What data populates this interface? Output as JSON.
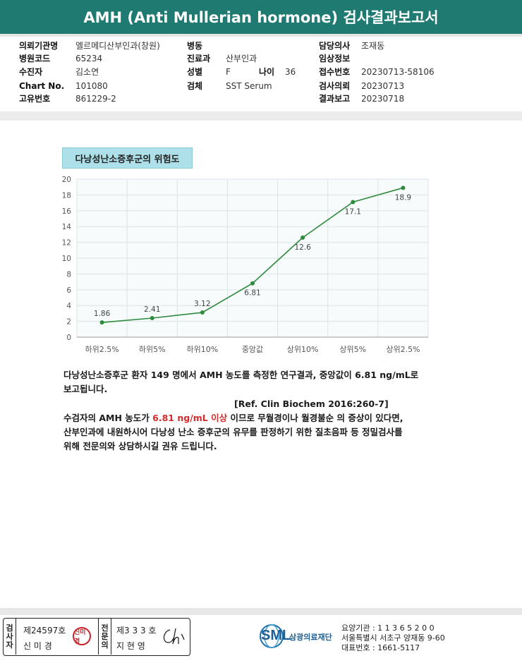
{
  "header": {
    "title": "AMH (Anti Mullerian hormone) 검사결과보고서"
  },
  "info": {
    "col1": [
      {
        "label": "의뢰기관명",
        "value": "엘르메디산부인과(창원)"
      },
      {
        "label": "병원코드",
        "value": "65234"
      },
      {
        "label": "수진자",
        "value": "김소연"
      },
      {
        "label": "Chart No.",
        "value": "101080"
      },
      {
        "label": "고유번호",
        "value": "861229-2"
      }
    ],
    "col2": [
      {
        "label": "병동",
        "value": ""
      },
      {
        "label": "진료과",
        "value": "산부인과"
      },
      {
        "label": "성별",
        "value": "F"
      },
      {
        "label": "검체",
        "value": "SST Serum"
      }
    ],
    "age": {
      "label": "나이",
      "value": "36"
    },
    "col3": [
      {
        "label": "담당의사",
        "value": "조재동"
      },
      {
        "label": "임상정보",
        "value": ""
      },
      {
        "label": "접수번호",
        "value": "20230713-58106"
      },
      {
        "label": "검사의뢰",
        "value": "20230713"
      },
      {
        "label": "결과보고",
        "value": "20230718"
      }
    ]
  },
  "chart_title": "다낭성난소증후군의 위험도",
  "chart_data": {
    "type": "line",
    "categories": [
      "하위2.5%",
      "하위5%",
      "하위10%",
      "중앙값",
      "상위10%",
      "상위5%",
      "상위2.5%"
    ],
    "values": [
      1.86,
      2.41,
      3.12,
      6.81,
      12.6,
      17.1,
      18.9
    ],
    "data_labels": [
      "1.86",
      "2.41",
      "3.12",
      "6.81",
      "12.6",
      "17.1",
      "18.9"
    ],
    "y_ticks": [
      "0",
      "2",
      "4",
      "6",
      "8",
      "10",
      "12",
      "14",
      "16",
      "18",
      "20"
    ],
    "ylim": [
      0,
      20
    ],
    "grid": true,
    "line_color": "#2e8b3e"
  },
  "text": {
    "line1": "다낭성난소증후군 환자 149 명에서 AMH 농도를 측정한 연구결과, 중앙값이 6.81 ng/mL로",
    "line2": "보고됩니다.",
    "ref": "[Ref. Clin Biochem 2016:260-7]",
    "line3_pre": "수검자의 AMH 농도가 ",
    "line3_red": "6.81 ng/mL 이상",
    "line3_post": " 이므로 무월경이나 월경불순 의 증상이 있다면,",
    "line4": "산부인과에 내원하시어 다낭성 난소 증후군의 유무를 판정하기 위한 질초음파 등 정밀검사를",
    "line5": "위해 전문의와 상담하시길 권유 드립니다."
  },
  "footer": {
    "inspector_label": [
      "검",
      "사",
      "자"
    ],
    "inspector_no": "제24597호",
    "inspector_name": "신 미 경",
    "seal_text": "신미경",
    "specialist_label": [
      "전",
      "문",
      "의"
    ],
    "specialist_no": "제3 3 3 호",
    "specialist_name": "지 현 영",
    "logo_text": "SML",
    "logo_org": "삼광의료재단",
    "contact1": "요양기관 : 1 1 3 6 5 2 0 0",
    "contact2": "서울특별시 서초구 양재동 9-60",
    "contact3": "대표번호 : 1661-5117"
  }
}
